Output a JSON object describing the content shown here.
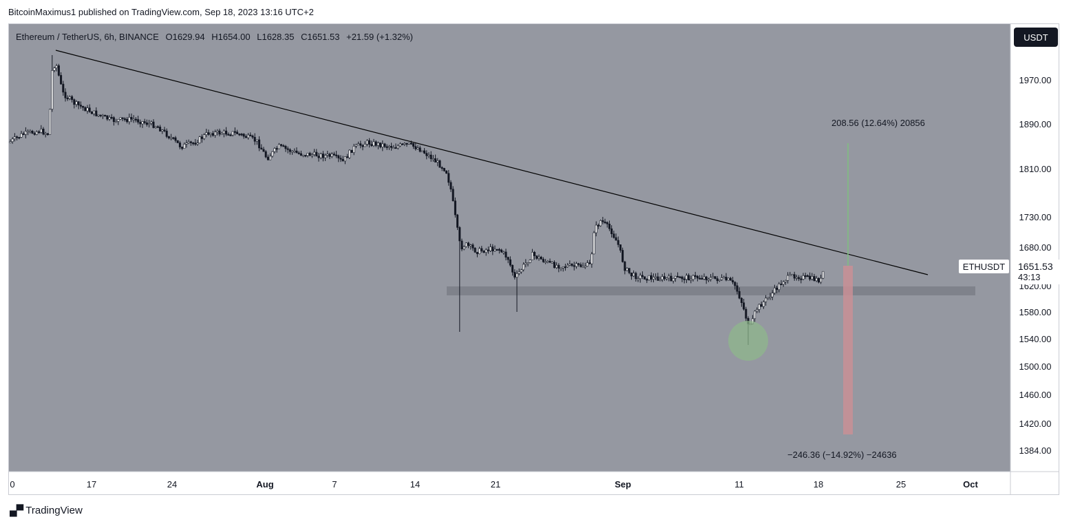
{
  "header": {
    "published_text": "BitcoinMaximus1 published on TradingView.com, Sep 18, 2023 13:16 UTC+2"
  },
  "symbol": {
    "name": "Ethereum / TetherUS, 6h, BINANCE",
    "open": "O1629.94",
    "high": "H1654.00",
    "low": "L1628.35",
    "close": "C1651.53",
    "change": "+21.59 (+1.32%)"
  },
  "currency_button": "USDT",
  "last_price": {
    "ticker": "ETHUSDT",
    "value": "1651.53",
    "countdown": "43:13"
  },
  "price_axis": {
    "labels": [
      "1970.00",
      "1890.00",
      "1810.00",
      "1730.00",
      "1680.00",
      "1620.00",
      "1580.00",
      "1540.00",
      "1500.00",
      "1460.00",
      "1420.00",
      "1384.00"
    ]
  },
  "time_axis": {
    "labels": [
      "0",
      "17",
      "24",
      "Aug",
      "7",
      "14",
      "21",
      "Sep",
      "11",
      "18",
      "25",
      "Oct"
    ]
  },
  "annotations": {
    "upside": "208.56 (12.64%) 20856",
    "downside": "−246.36 (−14.92%) −24636"
  },
  "colors": {
    "pane_background": "#9598a1",
    "candle": "#ffffff",
    "trendline": "#000000",
    "support_zone": "#7b7e87",
    "upside_line": "#7fbf7f",
    "downside_zone": "#c98f95",
    "highlight_circle": "#8fb98a"
  },
  "footer": {
    "brand": "TradingView"
  }
}
